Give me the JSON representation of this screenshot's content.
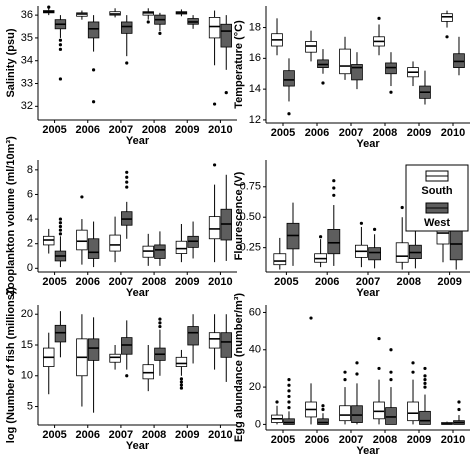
{
  "chart_data": [
    {
      "type": "box",
      "y_label": "Salinity (psu)",
      "x_label": "Year",
      "categories": [
        "2005",
        "2006",
        "2007",
        "2008",
        "2009",
        "2010"
      ],
      "ylim": [
        31.4,
        36.4
      ],
      "yticks": [
        32,
        33,
        34,
        35,
        36
      ],
      "series": [
        {
          "color": "#ffffff",
          "whisker_low": [
            36.0,
            35.8,
            35.9,
            35.8,
            35.95,
            33.8
          ],
          "q1": [
            36.1,
            35.95,
            36.0,
            36.0,
            36.05,
            35.0
          ],
          "median": [
            36.15,
            36.05,
            36.05,
            36.1,
            36.1,
            35.5
          ],
          "q3": [
            36.2,
            36.1,
            36.15,
            36.15,
            36.15,
            35.9
          ],
          "whisker_high": [
            36.3,
            36.2,
            36.3,
            36.3,
            36.25,
            36.2
          ],
          "outliers": [
            [
              36.35
            ],
            [],
            [],
            [
              35.7
            ],
            [],
            [
              32.1
            ]
          ]
        },
        {
          "color": "#5e5e5e",
          "whisker_low": [
            35.0,
            34.4,
            34.2,
            35.3,
            35.4,
            33.6
          ],
          "q1": [
            35.4,
            35.0,
            35.2,
            35.6,
            35.6,
            34.6
          ],
          "median": [
            35.6,
            35.4,
            35.5,
            35.8,
            35.7,
            35.3
          ],
          "q3": [
            35.8,
            35.7,
            35.7,
            36.0,
            35.85,
            35.6
          ],
          "whisker_high": [
            36.0,
            36.0,
            36.0,
            36.1,
            36.0,
            36.0
          ],
          "outliers": [
            [
              34.9,
              34.7,
              34.5,
              33.2
            ],
            [
              33.6,
              32.2
            ],
            [
              33.9
            ],
            [
              35.2
            ],
            [],
            [
              32.6
            ]
          ]
        }
      ]
    },
    {
      "type": "box",
      "y_label": "Temperature (°C)",
      "x_label": "Year",
      "categories": [
        "2005",
        "2006",
        "2007",
        "2008",
        "2009",
        "2010"
      ],
      "ylim": [
        11.8,
        19.4
      ],
      "yticks": [
        12,
        14,
        16,
        18
      ],
      "series": [
        {
          "color": "#ffffff",
          "whisker_low": [
            16.2,
            15.8,
            14.6,
            16.2,
            14.2,
            18.0
          ],
          "q1": [
            16.8,
            16.4,
            15.0,
            16.8,
            14.8,
            18.4
          ],
          "median": [
            17.2,
            16.8,
            15.5,
            17.1,
            15.1,
            18.7
          ],
          "q3": [
            17.6,
            17.1,
            16.6,
            17.4,
            15.4,
            18.9
          ],
          "whisker_high": [
            18.6,
            17.8,
            17.4,
            18.2,
            15.8,
            19.1
          ],
          "outliers": [
            [],
            [],
            [],
            [
              18.6
            ],
            [],
            [
              17.4
            ]
          ]
        },
        {
          "color": "#5e5e5e",
          "whisker_low": [
            13.2,
            15.0,
            14.0,
            14.2,
            13.0,
            14.9
          ],
          "q1": [
            14.2,
            15.4,
            14.6,
            15.0,
            13.4,
            15.4
          ],
          "median": [
            14.6,
            15.6,
            15.4,
            15.4,
            13.8,
            15.8
          ],
          "q3": [
            15.2,
            15.9,
            15.6,
            15.7,
            14.2,
            16.3
          ],
          "whisker_high": [
            16.0,
            16.6,
            16.4,
            16.4,
            15.2,
            17.4
          ],
          "outliers": [
            [
              12.4
            ],
            [
              14.4
            ],
            [],
            [
              13.8
            ],
            [],
            []
          ]
        }
      ]
    },
    {
      "type": "box",
      "y_label": "Zooplankton volume (ml/10m³)",
      "x_label": "Year",
      "categories": [
        "2005",
        "2006",
        "2007",
        "2008",
        "2009",
        "2010"
      ],
      "ylim": [
        -0.3,
        8.8
      ],
      "yticks": [
        0,
        2,
        4,
        6,
        8
      ],
      "series": [
        {
          "color": "#ffffff",
          "whisker_low": [
            1.2,
            0.3,
            0.5,
            0.2,
            0.5,
            0.5
          ],
          "q1": [
            1.9,
            1.5,
            1.4,
            0.9,
            1.2,
            2.4
          ],
          "median": [
            2.3,
            2.2,
            1.9,
            1.4,
            1.6,
            3.2
          ],
          "q3": [
            2.6,
            3.1,
            2.7,
            1.8,
            2.2,
            4.2
          ],
          "whisker_high": [
            3.2,
            4.0,
            4.2,
            2.8,
            3.6,
            6.8
          ],
          "outliers": [
            [],
            [
              5.8
            ],
            [],
            [],
            [],
            [
              8.4
            ]
          ]
        },
        {
          "color": "#5e5e5e",
          "whisker_low": [
            0.1,
            0.1,
            2.4,
            0.2,
            0.8,
            0.6
          ],
          "q1": [
            0.6,
            0.8,
            3.5,
            0.8,
            1.7,
            2.3
          ],
          "median": [
            1.0,
            1.3,
            4.0,
            1.5,
            2.2,
            3.6
          ],
          "q3": [
            1.4,
            2.4,
            4.6,
            1.9,
            2.6,
            4.8
          ],
          "whisker_high": [
            2.6,
            3.8,
            5.4,
            3.0,
            3.8,
            7.6
          ],
          "outliers": [
            [
              2.8,
              3.1,
              3.4,
              3.7,
              4.0
            ],
            [],
            [
              6.6,
              7.0,
              7.4,
              7.8
            ],
            [],
            [],
            []
          ]
        }
      ]
    },
    {
      "type": "box",
      "y_label": "Flourescence (V)",
      "x_label": "Year",
      "legend": "top-right",
      "categories": [
        "2005",
        "2006",
        "2007",
        "2008",
        "2009"
      ],
      "ylim": [
        0.05,
        0.97
      ],
      "yticks": [
        0.25,
        {
          "value": 0.5,
          "label": "0.50"
        },
        0.75
      ],
      "series": [
        {
          "name": "South",
          "color": "#ffffff",
          "whisker_low": [
            0.07,
            0.09,
            0.09,
            0.07,
            0.13
          ],
          "q1": [
            0.11,
            0.13,
            0.17,
            0.13,
            0.28
          ],
          "median": [
            0.14,
            0.16,
            0.22,
            0.18,
            0.37
          ],
          "q3": [
            0.2,
            0.2,
            0.27,
            0.29,
            0.46
          ],
          "whisker_high": [
            0.33,
            0.32,
            0.42,
            0.5,
            0.65
          ],
          "outliers": [
            [],
            [
              0.34
            ],
            [
              0.45
            ],
            [
              0.58
            ],
            []
          ]
        },
        {
          "name": "West",
          "color": "#5e5e5e",
          "whisker_low": [
            0.1,
            0.1,
            0.08,
            0.08,
            0.07
          ],
          "q1": [
            0.24,
            0.2,
            0.15,
            0.16,
            0.15
          ],
          "median": [
            0.35,
            0.29,
            0.21,
            0.21,
            0.28
          ],
          "q3": [
            0.45,
            0.4,
            0.25,
            0.27,
            0.45
          ],
          "whisker_high": [
            0.62,
            0.6,
            0.36,
            0.44,
            0.62
          ],
          "outliers": [
            [],
            [
              0.68,
              0.74,
              0.8
            ],
            [
              0.4
            ],
            [
              0.5,
              0.55
            ],
            []
          ]
        }
      ]
    },
    {
      "type": "box",
      "y_label": "log (Number of fish (millions))",
      "x_label": "Year",
      "categories": [
        "2005",
        "2006",
        "2007",
        "2008",
        "2009",
        "2010"
      ],
      "ylim": [
        2,
        21.5
      ],
      "yticks": [
        5,
        10,
        15,
        20
      ],
      "series": [
        {
          "color": "#ffffff",
          "whisker_low": [
            7,
            5,
            11,
            7.5,
            10,
            11
          ],
          "q1": [
            11.5,
            10,
            12.2,
            9.5,
            11.5,
            14.5
          ],
          "median": [
            13,
            13,
            13,
            10.5,
            12,
            16
          ],
          "q3": [
            14.5,
            16,
            13.5,
            11.8,
            13,
            17
          ],
          "whisker_high": [
            17,
            20,
            15,
            15,
            14.2,
            20
          ],
          "outliers": [
            [],
            [],
            [],
            [],
            [
              9.5,
              9,
              8.5,
              8
            ],
            []
          ]
        },
        {
          "color": "#5e5e5e",
          "whisker_low": [
            13,
            4,
            11,
            10,
            12,
            9
          ],
          "q1": [
            15.5,
            12.5,
            13.5,
            12.5,
            15,
            13
          ],
          "median": [
            17,
            14.5,
            15,
            13.5,
            17,
            15.5
          ],
          "q3": [
            18.2,
            16,
            16.2,
            14.5,
            18,
            17
          ],
          "whisker_high": [
            20.5,
            19.5,
            19,
            17.5,
            20,
            20
          ],
          "outliers": [
            [],
            [],
            [
              10
            ],
            [
              18,
              18.6,
              19.2
            ],
            [],
            []
          ]
        }
      ]
    },
    {
      "type": "box",
      "y_label": "Egg abundance (number/m³)",
      "x_label": "Year",
      "categories": [
        "2005",
        "2006",
        "2007",
        "2008",
        "2009",
        "2010"
      ],
      "ylim": [
        -3,
        64
      ],
      "yticks": [
        0,
        20,
        40,
        60
      ],
      "series": [
        {
          "color": "#ffffff",
          "whisker_low": [
            0,
            0,
            0,
            0,
            0,
            0
          ],
          "q1": [
            1,
            4,
            2,
            3,
            2,
            0
          ],
          "median": [
            3,
            8,
            5,
            7,
            6,
            0.3
          ],
          "q3": [
            5,
            12,
            10,
            12,
            12,
            1
          ],
          "whisker_high": [
            10,
            22,
            20,
            24,
            24,
            1.5
          ],
          "outliers": [
            [
              12
            ],
            [
              57
            ],
            [
              24,
              28
            ],
            [
              30,
              46
            ],
            [
              28,
              33
            ],
            []
          ]
        },
        {
          "color": "#5e5e5e",
          "whisker_low": [
            0,
            0,
            0,
            0,
            0,
            0
          ],
          "q1": [
            0,
            0,
            1,
            0,
            0,
            0
          ],
          "median": [
            1,
            1,
            5,
            4,
            2,
            1
          ],
          "q3": [
            3,
            3,
            10,
            9,
            7,
            2
          ],
          "whisker_high": [
            7,
            6,
            22,
            20,
            16,
            5
          ],
          "outliers": [
            [
              9,
              12,
              15,
              18,
              21,
              24
            ],
            [
              8,
              10
            ],
            [
              27,
              33
            ],
            [
              24,
              28,
              40
            ],
            [
              20,
              22,
              24,
              26,
              30
            ],
            [
              8,
              12
            ]
          ]
        }
      ]
    }
  ]
}
